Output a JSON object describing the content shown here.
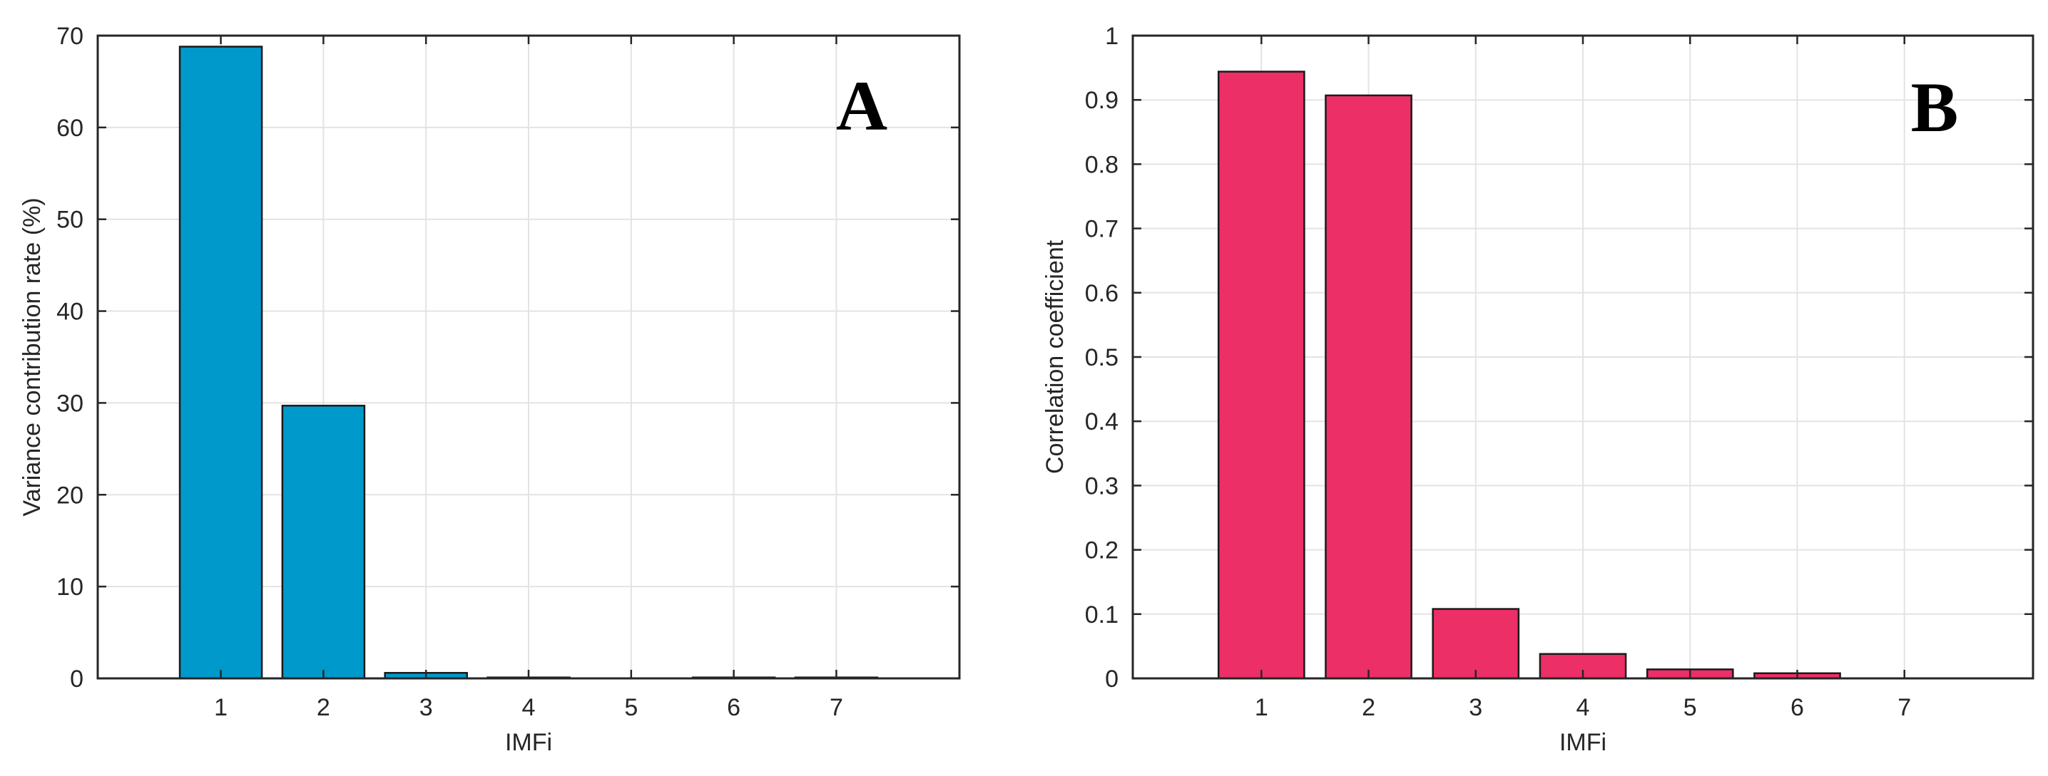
{
  "chart_data": [
    {
      "panel": "A",
      "type": "bar",
      "title": "",
      "panel_label": "A",
      "xlabel": "IMFi",
      "ylabel": "Variance contribution rate (%)",
      "categories": [
        "1",
        "2",
        "3",
        "4",
        "5",
        "6",
        "7"
      ],
      "values": [
        68.8,
        29.7,
        0.6,
        0.1,
        0.0,
        0.1,
        0.1
      ],
      "yticks": [
        "0",
        "10",
        "20",
        "30",
        "40",
        "50",
        "60",
        "70"
      ],
      "ylim": [
        0,
        70
      ],
      "xlim": [
        -0.2,
        8.2
      ],
      "grid": true,
      "legend": null,
      "bar_color": "#0099CC"
    },
    {
      "panel": "B",
      "type": "bar",
      "title": "",
      "panel_label": "B",
      "xlabel": "IMFi",
      "ylabel": "Correlation coefficient",
      "categories": [
        "1",
        "2",
        "3",
        "4",
        "5",
        "6",
        "7"
      ],
      "values": [
        0.944,
        0.907,
        0.108,
        0.038,
        0.014,
        0.008,
        0.0
      ],
      "yticks": [
        "0",
        "0.1",
        "0.2",
        "0.3",
        "0.4",
        "0.5",
        "0.6",
        "0.7",
        "0.8",
        "0.9",
        "1"
      ],
      "ylim": [
        0,
        1
      ],
      "xlim": [
        -0.2,
        8.2
      ],
      "grid": true,
      "legend": null,
      "bar_color": "#EC2F66"
    }
  ],
  "colors": {
    "bar_edge": "#1a1a1a",
    "axis": "#262626",
    "grid": "#e3e3e3",
    "tick_text": "#262626"
  }
}
